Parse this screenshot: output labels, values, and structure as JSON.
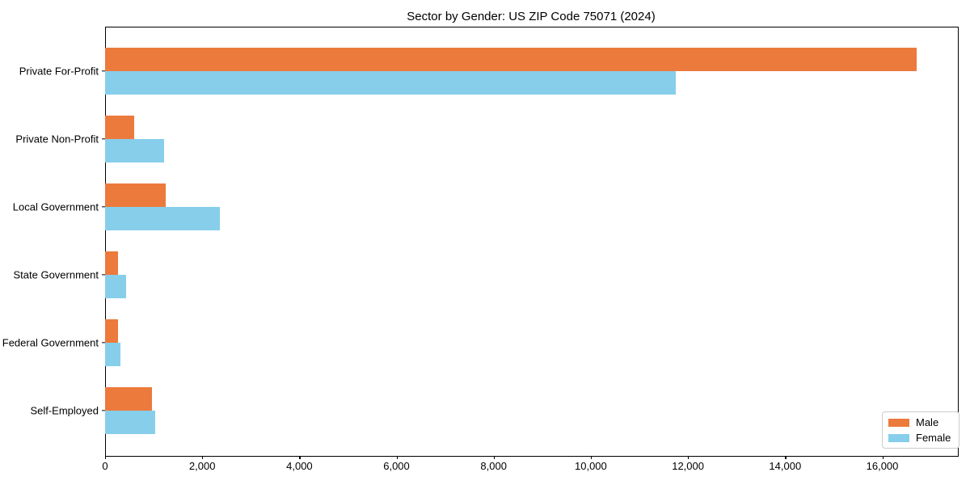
{
  "figure": {
    "title": "Sector by Gender: US ZIP Code 75071 (2024)"
  },
  "chart_data": {
    "type": "bar",
    "orientation": "horizontal",
    "title": "Sector by Gender: US ZIP Code 75071 (2024)",
    "categories": [
      "Private For-Profit",
      "Private Non-Profit",
      "Local Government",
      "State Government",
      "Federal Government",
      "Self-Employed"
    ],
    "series": [
      {
        "name": "Male",
        "color": "#EC7A3C",
        "values": [
          16700,
          600,
          1250,
          270,
          265,
          965
        ]
      },
      {
        "name": "Female",
        "color": "#87CEEB",
        "values": [
          11750,
          1220,
          2360,
          430,
          315,
          1030
        ]
      }
    ],
    "xlabel": "",
    "ylabel": "",
    "xlim": [
      0,
      17540
    ],
    "xticks": [
      0,
      2000,
      4000,
      6000,
      8000,
      10000,
      12000,
      14000,
      16000
    ],
    "xtick_labels": [
      "0",
      "2,000",
      "4,000",
      "6,000",
      "8,000",
      "10,000",
      "12,000",
      "14,000",
      "16,000"
    ],
    "grid": false,
    "legend": {
      "position": "lower right",
      "entries": [
        "Male",
        "Female"
      ]
    },
    "colors": {
      "male": "#EC7A3C",
      "female": "#87CEEB",
      "spine": "#000000",
      "legend_border": "#cccccc"
    }
  }
}
